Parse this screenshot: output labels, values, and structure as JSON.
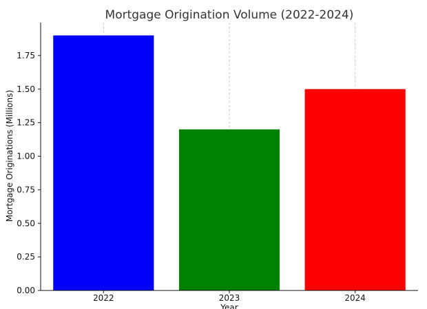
{
  "chart_data": {
    "type": "bar",
    "title": "Mortgage Origination Volume (2022-2024)",
    "xlabel": "Year",
    "ylabel": "Mortgage Originations (Millions)",
    "categories": [
      "2022",
      "2023",
      "2024"
    ],
    "values": [
      1.9,
      1.2,
      1.5
    ],
    "colors": [
      "#0000ff",
      "#008000",
      "#ff0000"
    ],
    "ylim": [
      0,
      1.995
    ],
    "yticks": [
      0.0,
      0.25,
      0.5,
      0.75,
      1.0,
      1.25,
      1.5,
      1.75
    ],
    "ytick_labels": [
      "0.00",
      "0.25",
      "0.50",
      "0.75",
      "1.00",
      "1.25",
      "1.50",
      "1.75"
    ],
    "grid": {
      "x": true,
      "y": false,
      "style": "dashed"
    },
    "legend": "none"
  }
}
